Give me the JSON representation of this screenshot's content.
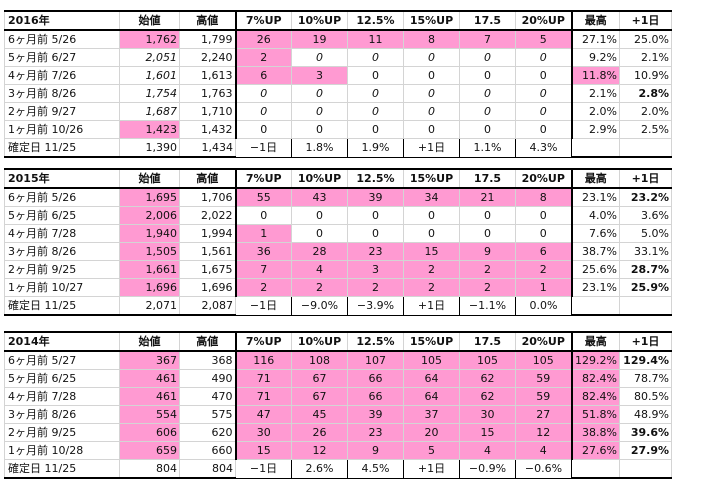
{
  "colors": {
    "highlight": "#ff9ad2",
    "muted_text": "#a8a8a8"
  },
  "blocks": [
    {
      "header": [
        "2016年",
        "始値",
        "高値",
        "7%UP",
        "10%UP",
        "12.5%",
        "15%UP",
        "17.5",
        "20%UP",
        "最高",
        "+1日"
      ],
      "rows": [
        [
          "6ヶ月前 5/26",
          "1,762",
          "1,799",
          "26",
          "19",
          "11",
          "8",
          "7",
          "5",
          "27.1%",
          "25.0%"
        ],
        [
          "5ヶ月前 6/27",
          "2,051",
          "2,240",
          "2",
          "0",
          "0",
          "0",
          "0",
          "0",
          "9.2%",
          "2.1%"
        ],
        [
          "4ヶ月前 7/26",
          "1,601",
          "1,613",
          "6",
          "3",
          "0",
          "0",
          "0",
          "0",
          "11.8%",
          "10.9%"
        ],
        [
          "3ヶ月前 8/26",
          "1,754",
          "1,763",
          "0",
          "0",
          "0",
          "0",
          "0",
          "0",
          "2.1%",
          "2.8%"
        ],
        [
          "2ヶ月前 9/27",
          "1,687",
          "1,710",
          "0",
          "0",
          "0",
          "0",
          "0",
          "0",
          "2.0%",
          "2.0%"
        ],
        [
          "1ヶ月前 10/26",
          "1,423",
          "1,432",
          "0",
          "0",
          "0",
          "0",
          "0",
          "0",
          "2.9%",
          "2.5%"
        ],
        [
          "確定日 11/25",
          "1,390",
          "1,434",
          "−1日",
          "1.8%",
          "1.9%",
          "+1日",
          "1.1%",
          "4.3%",
          "",
          ""
        ]
      ]
    },
    {
      "header": [
        "2015年",
        "始値",
        "高値",
        "7%UP",
        "10%UP",
        "12.5%",
        "15%UP",
        "17.5",
        "20%UP",
        "最高",
        "+1日"
      ],
      "rows": [
        [
          "6ヶ月前 5/26",
          "1,695",
          "1,706",
          "55",
          "43",
          "39",
          "34",
          "21",
          "8",
          "23.1%",
          "23.2%"
        ],
        [
          "5ヶ月前 6/25",
          "2,006",
          "2,022",
          "0",
          "0",
          "0",
          "0",
          "0",
          "0",
          "4.0%",
          "3.6%"
        ],
        [
          "4ヶ月前 7/28",
          "1,940",
          "1,994",
          "1",
          "0",
          "0",
          "0",
          "0",
          "0",
          "7.6%",
          "5.0%"
        ],
        [
          "3ヶ月前 8/26",
          "1,505",
          "1,561",
          "36",
          "28",
          "23",
          "15",
          "9",
          "6",
          "38.7%",
          "33.1%"
        ],
        [
          "2ヶ月前 9/25",
          "1,661",
          "1,675",
          "7",
          "4",
          "3",
          "2",
          "2",
          "2",
          "25.6%",
          "28.7%"
        ],
        [
          "1ヶ月前 10/27",
          "1,696",
          "1,696",
          "2",
          "2",
          "2",
          "2",
          "2",
          "1",
          "23.1%",
          "25.9%"
        ],
        [
          "確定日 11/25",
          "2,071",
          "2,087",
          "−1日",
          "−9.0%",
          "−3.9%",
          "+1日",
          "−1.1%",
          "0.0%",
          "",
          ""
        ]
      ]
    },
    {
      "header": [
        "2014年",
        "始値",
        "高値",
        "7%UP",
        "10%UP",
        "12.5%",
        "15%UP",
        "17.5",
        "20%UP",
        "最高",
        "+1日"
      ],
      "rows": [
        [
          "6ヶ月前 5/27",
          "367",
          "368",
          "116",
          "108",
          "107",
          "105",
          "105",
          "105",
          "129.2%",
          "129.4%"
        ],
        [
          "5ヶ月前 6/25",
          "461",
          "490",
          "71",
          "67",
          "66",
          "64",
          "62",
          "59",
          "82.4%",
          "78.7%"
        ],
        [
          "4ヶ月前 7/28",
          "461",
          "470",
          "71",
          "67",
          "66",
          "64",
          "62",
          "59",
          "82.4%",
          "80.5%"
        ],
        [
          "3ヶ月前 8/26",
          "554",
          "575",
          "47",
          "45",
          "39",
          "37",
          "30",
          "27",
          "51.8%",
          "48.9%"
        ],
        [
          "2ヶ月前 9/25",
          "606",
          "620",
          "30",
          "26",
          "23",
          "20",
          "15",
          "12",
          "38.8%",
          "39.6%"
        ],
        [
          "1ヶ月前 10/28",
          "659",
          "660",
          "15",
          "12",
          "9",
          "5",
          "4",
          "4",
          "27.6%",
          "27.9%"
        ],
        [
          "確定日 11/25",
          "804",
          "804",
          "−1日",
          "2.6%",
          "4.5%",
          "+1日",
          "−0.9%",
          "−0.6%",
          "",
          ""
        ]
      ]
    }
  ]
}
